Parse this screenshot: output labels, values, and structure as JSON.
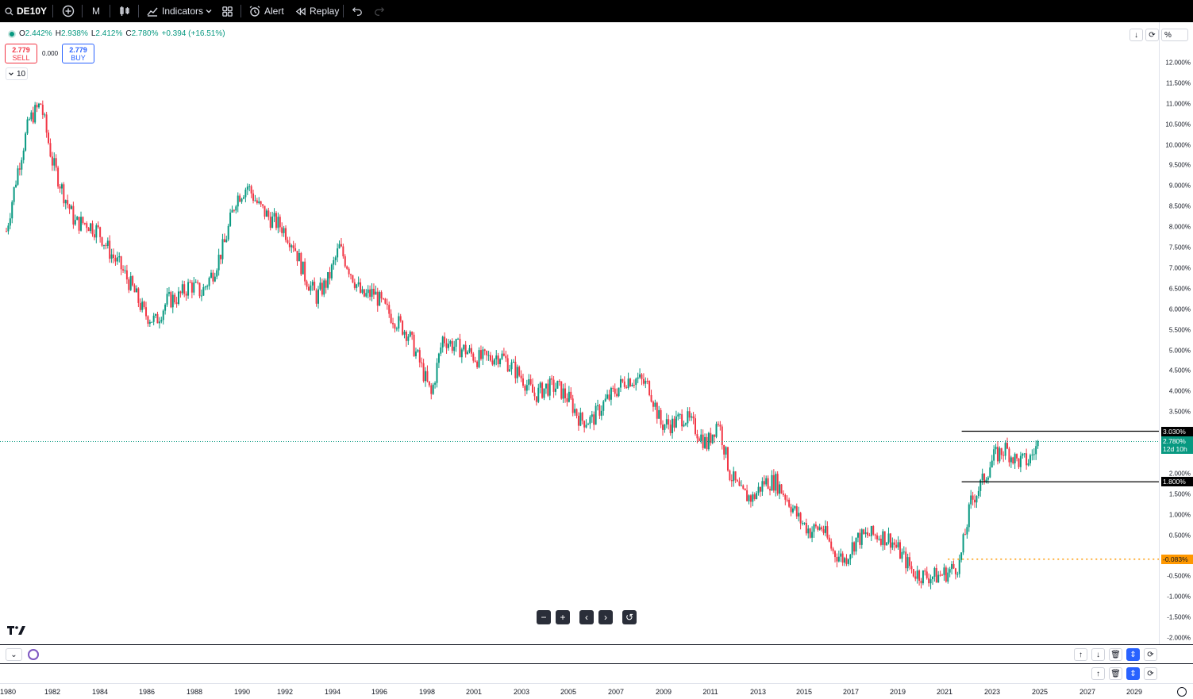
{
  "toolbar": {
    "symbol": "DE10Y",
    "interval": "M",
    "indicators_label": "Indicators",
    "alert_label": "Alert",
    "replay_label": "Replay"
  },
  "legend": {
    "o_label": "O",
    "o_value": "2.442%",
    "h_label": "H",
    "h_value": "2.938%",
    "l_label": "L",
    "l_value": "2.412%",
    "c_label": "C",
    "c_value": "2.780%",
    "change": "+0.394 (+16.51%)"
  },
  "trade": {
    "sell_price": "2.779",
    "sell_label": "SELL",
    "spread": "0.000",
    "buy_price": "2.779",
    "buy_label": "BUY"
  },
  "interval_chip": "10",
  "price_axis": {
    "scale_mode": "%",
    "ticks": [
      "12.000%",
      "11.500%",
      "11.000%",
      "10.500%",
      "10.000%",
      "9.500%",
      "9.000%",
      "8.500%",
      "8.000%",
      "7.500%",
      "7.000%",
      "6.500%",
      "6.000%",
      "5.500%",
      "5.000%",
      "4.500%",
      "4.000%",
      "3.500%",
      "2.000%",
      "1.500%",
      "1.000%",
      "0.500%",
      "-0.500%",
      "-1.000%",
      "-1.500%",
      "-2.000%"
    ],
    "resistance_label": "3.030%",
    "last_price_label": "2.780%",
    "countdown_label": "12d 10h",
    "support_label": "1.800%",
    "negative_label": "-0.083%"
  },
  "chart_data": {
    "type": "candlestick",
    "symbol": "DE10Y",
    "interval": "1M",
    "unit": "%",
    "ylim": [
      -2.0,
      12.5
    ],
    "xlim": [
      1980,
      2030
    ],
    "x": [
      1980,
      1980.5,
      1981,
      1981.5,
      1982,
      1982.5,
      1983,
      1983.5,
      1984,
      1984.5,
      1985,
      1985.5,
      1986,
      1986.5,
      1987,
      1987.5,
      1988,
      1988.5,
      1989,
      1989.5,
      1990,
      1990.5,
      1991,
      1991.5,
      1992,
      1992.5,
      1993,
      1993.5,
      1994,
      1994.5,
      1995,
      1995.5,
      1996,
      1996.5,
      1997,
      1997.5,
      1998,
      1998.5,
      1999,
      1999.5,
      2000,
      2000.5,
      2001,
      2001.5,
      2002,
      2002.5,
      2003,
      2003.5,
      2004,
      2004.5,
      2005,
      2005.5,
      2006,
      2006.5,
      2007,
      2007.5,
      2008,
      2008.5,
      2009,
      2009.5,
      2010,
      2010.5,
      2011,
      2011.5,
      2012,
      2012.5,
      2013,
      2013.5,
      2014,
      2014.5,
      2015,
      2015.5,
      2016,
      2016.5,
      2017,
      2017.5,
      2018,
      2018.5,
      2019,
      2019.5,
      2020,
      2020.5,
      2021,
      2021.5,
      2022,
      2022.5,
      2023,
      2023.5,
      2024,
      2024.5,
      2025
    ],
    "close": [
      7.9,
      9.4,
      10.6,
      11.0,
      9.6,
      8.8,
      8.1,
      8.1,
      7.9,
      7.4,
      7.0,
      6.5,
      5.9,
      5.7,
      6.2,
      6.3,
      6.6,
      6.4,
      6.9,
      7.6,
      8.7,
      9.0,
      8.5,
      8.2,
      8.0,
      7.6,
      6.8,
      6.3,
      6.7,
      7.5,
      6.9,
      6.3,
      6.4,
      6.0,
      5.7,
      5.4,
      4.7,
      3.9,
      5.3,
      5.1,
      5.0,
      4.8,
      4.8,
      4.9,
      4.6,
      4.3,
      3.9,
      4.1,
      4.1,
      3.8,
      3.3,
      3.3,
      3.7,
      4.0,
      4.3,
      4.3,
      4.1,
      3.2,
      3.2,
      3.4,
      3.1,
      2.7,
      3.3,
      2.0,
      1.5,
      1.4,
      1.8,
      1.8,
      1.4,
      0.9,
      0.6,
      0.7,
      0.1,
      -0.1,
      0.4,
      0.5,
      0.5,
      0.4,
      0.0,
      -0.4,
      -0.5,
      -0.5,
      -0.4,
      -0.2,
      1.3,
      1.8,
      2.4,
      2.6,
      2.3,
      2.3,
      2.78
    ],
    "resistance": 3.03,
    "support": 1.8,
    "reference_level": -0.083,
    "last": 2.78,
    "years": [
      "1980",
      "1982",
      "1984",
      "1986",
      "1988",
      "1990",
      "1992",
      "1994",
      "1996",
      "1998",
      "2001",
      "2003",
      "2005",
      "2007",
      "2009",
      "2011",
      "2013",
      "2015",
      "2017",
      "2019",
      "2021",
      "2023",
      "2025",
      "2027",
      "2029"
    ]
  },
  "colors": {
    "up": "#089981",
    "down": "#f23645",
    "level_line": "#000000",
    "reference_line": "#ff9800",
    "last_price_line": "#089981"
  },
  "icons": {
    "search": "search-icon",
    "add": "plus-circle-icon",
    "candles": "candles-icon",
    "indicators": "indicators-icon",
    "templates": "templates-icon",
    "alert": "alarm-clock-icon",
    "replay": "rewind-icon",
    "undo": "undo-icon",
    "redo": "redo-icon"
  }
}
